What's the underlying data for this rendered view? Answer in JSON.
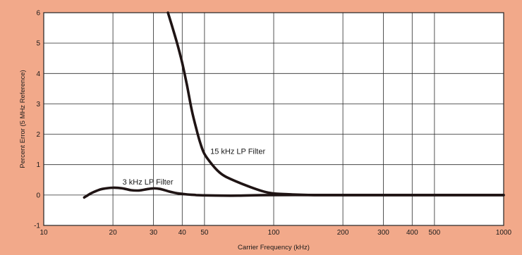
{
  "chart_data": {
    "type": "line",
    "xlabel": "Carrier Frequency (kHz)",
    "ylabel": "Percent Error (5 MHz Reference)",
    "x_scale": "log",
    "xlim": [
      10,
      1000
    ],
    "ylim": [
      -1,
      6
    ],
    "grid": true,
    "x_ticks": [
      10,
      20,
      30,
      40,
      50,
      100,
      200,
      300,
      400,
      500,
      1000
    ],
    "x_tick_labels": [
      "10",
      "20",
      "30",
      "40",
      "50",
      "100",
      "200",
      "300",
      "400",
      "500",
      "1000"
    ],
    "x_grid": [
      10,
      20,
      30,
      40,
      50,
      100,
      200,
      300,
      400,
      500,
      1000
    ],
    "y_ticks": [
      -1,
      0,
      1,
      2,
      3,
      4,
      5,
      6
    ],
    "y_tick_labels": [
      "-1",
      "0",
      "1",
      "2",
      "3",
      "4",
      "5",
      "6"
    ],
    "series": [
      {
        "name": "3 kHz LP Filter",
        "x": [
          15,
          16,
          17,
          18,
          20,
          22,
          24,
          26,
          28,
          30,
          32,
          35,
          38,
          42,
          46,
          50,
          60,
          70,
          80,
          100,
          150,
          200,
          300,
          500,
          700,
          1000
        ],
        "y": [
          -0.08,
          0.05,
          0.14,
          0.2,
          0.24,
          0.22,
          0.16,
          0.15,
          0.19,
          0.22,
          0.2,
          0.12,
          0.06,
          0.02,
          0.0,
          -0.01,
          -0.02,
          -0.02,
          -0.01,
          0.0,
          0.0,
          0.0,
          0.0,
          0.0,
          0.0,
          0.0
        ]
      },
      {
        "name": "15 kHz LP Filter",
        "x": [
          34.7,
          36,
          38,
          40,
          42,
          44,
          46,
          48,
          50,
          54,
          58,
          62,
          70,
          80,
          90,
          100,
          120,
          150,
          200,
          300,
          500,
          700,
          1000
        ],
        "y": [
          6.0,
          5.6,
          5.0,
          4.35,
          3.6,
          2.8,
          2.2,
          1.7,
          1.35,
          1.0,
          0.75,
          0.6,
          0.42,
          0.25,
          0.12,
          0.05,
          0.02,
          0.0,
          0.0,
          0.0,
          0.0,
          0.0,
          0.0
        ]
      }
    ],
    "annotations": [
      {
        "text": "15 kHz LP Filter",
        "x": 53,
        "y": 1.35
      },
      {
        "text": "3 kHz LP Filter",
        "x": 22,
        "y": 0.35
      }
    ]
  }
}
